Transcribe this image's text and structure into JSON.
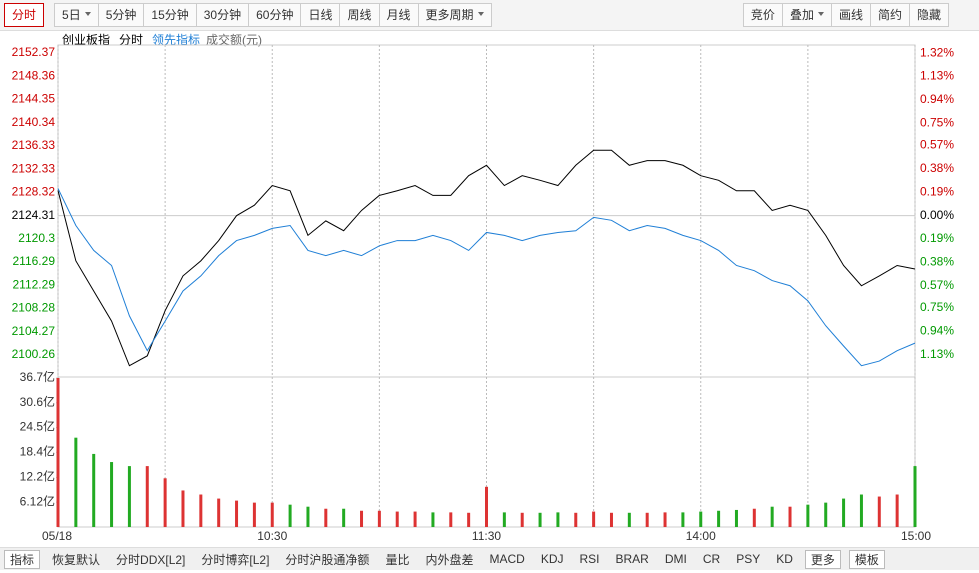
{
  "toolbar": {
    "left": [
      "分时",
      "5日",
      "5分钟",
      "15分钟",
      "30分钟",
      "60分钟",
      "日线",
      "周线",
      "月线",
      "更多周期"
    ],
    "right": [
      "竞价",
      "叠加",
      "画线",
      "简约",
      "隐藏"
    ]
  },
  "legend": {
    "index": "创业板指",
    "mode": "分时",
    "lead": "领先指标",
    "volume": "成交额(元)"
  },
  "bottom_tabs": [
    "指标",
    "恢复默认",
    "分时DDX[L2]",
    "分时博弈[L2]",
    "分时沪股通净额",
    "量比",
    "内外盘差",
    "MACD",
    "KDJ",
    "RSI",
    "BRAR",
    "DMI",
    "CR",
    "PSY",
    "KD",
    "更多",
    "模板"
  ],
  "chart_data": [
    {
      "type": "line",
      "x": [
        0,
        5,
        10,
        15,
        20,
        25,
        30,
        35,
        40,
        45,
        50,
        55,
        60,
        65,
        70,
        75,
        80,
        85,
        90,
        95,
        100,
        105,
        110,
        115,
        120,
        125,
        130,
        135,
        140,
        145,
        150,
        155,
        160,
        165,
        170,
        175,
        180,
        185,
        190,
        195,
        200,
        205,
        210,
        215,
        220,
        225,
        230,
        235,
        240
      ],
      "xlim": [
        0,
        240
      ],
      "xticks": [
        {
          "value": 0,
          "label": "05/18"
        },
        {
          "value": 60,
          "label": "10:30"
        },
        {
          "value": 120,
          "label": "11:30"
        },
        {
          "value": 180,
          "label": "14:00"
        },
        {
          "value": 240,
          "label": "15:00"
        }
      ],
      "ylim": [
        2096.45,
        2153.76
      ],
      "yticks": [
        2152.37,
        2148.36,
        2144.35,
        2140.34,
        2136.33,
        2132.33,
        2128.32,
        2124.31,
        2120.3,
        2116.29,
        2112.29,
        2108.28,
        2104.27,
        2100.26
      ],
      "y2lim": [
        -1.311,
        1.386
      ],
      "y2ticks": [
        {
          "value": 1.32,
          "label": "1.32%"
        },
        {
          "value": 1.13,
          "label": "1.13%"
        },
        {
          "value": 0.94,
          "label": "0.94%"
        },
        {
          "value": 0.75,
          "label": "0.75%"
        },
        {
          "value": 0.57,
          "label": "0.57%"
        },
        {
          "value": 0.38,
          "label": "0.38%"
        },
        {
          "value": 0.19,
          "label": "0.19%"
        },
        {
          "value": 0,
          "label": "0.00%"
        },
        {
          "value": -0.19,
          "label": "0.19%"
        },
        {
          "value": -0.38,
          "label": "0.38%"
        },
        {
          "value": -0.57,
          "label": "0.57%"
        },
        {
          "value": -0.75,
          "label": "0.75%"
        },
        {
          "value": -0.94,
          "label": "0.94%"
        },
        {
          "value": -1.13,
          "label": "1.13%"
        }
      ],
      "series": [
        {
          "name": "创业板指",
          "color": "#000000",
          "values": [
            2128.65,
            2116.5,
            2111.3,
            2106.1,
            2098.4,
            2100.1,
            2107.9,
            2113.9,
            2116.5,
            2120.0,
            2124.3,
            2126.1,
            2129.5,
            2128.6,
            2120.9,
            2123.4,
            2121.7,
            2125.2,
            2127.8,
            2128.6,
            2129.5,
            2127.8,
            2127.8,
            2131.2,
            2133.0,
            2129.5,
            2131.2,
            2130.4,
            2129.5,
            2133.0,
            2135.6,
            2135.6,
            2133.0,
            2133.8,
            2133.8,
            2133.0,
            2131.2,
            2130.4,
            2128.6,
            2128.6,
            2125.2,
            2126.1,
            2125.2,
            2120.9,
            2115.7,
            2112.2,
            2113.9,
            2115.7,
            2115.1
          ]
        },
        {
          "name": "领先指标",
          "color": "#1f7fd6",
          "values": [
            2129.0,
            2122.6,
            2118.3,
            2115.7,
            2107.0,
            2101.0,
            2106.1,
            2111.3,
            2113.9,
            2117.4,
            2120.0,
            2120.9,
            2122.1,
            2122.6,
            2118.3,
            2117.4,
            2118.3,
            2117.4,
            2119.1,
            2120.0,
            2120.0,
            2120.9,
            2120.0,
            2118.3,
            2121.4,
            2120.9,
            2120.0,
            2120.9,
            2121.4,
            2121.7,
            2124.0,
            2123.5,
            2121.7,
            2122.6,
            2122.1,
            2120.9,
            2120.0,
            2118.3,
            2115.7,
            2114.8,
            2113.1,
            2112.2,
            2109.6,
            2105.3,
            2101.8,
            2098.4,
            2099.2,
            2101.0,
            2102.3
          ]
        }
      ]
    },
    {
      "type": "bar",
      "x": [
        0,
        5,
        10,
        15,
        20,
        25,
        30,
        35,
        40,
        45,
        50,
        55,
        60,
        65,
        70,
        75,
        80,
        85,
        90,
        95,
        100,
        105,
        110,
        115,
        120,
        125,
        130,
        135,
        140,
        145,
        150,
        155,
        160,
        165,
        170,
        175,
        180,
        185,
        190,
        195,
        200,
        205,
        210,
        215,
        220,
        225,
        230,
        235,
        240
      ],
      "xlim": [
        0,
        240
      ],
      "ylim": [
        0,
        36.7
      ],
      "yticks": [
        {
          "value": 36.7,
          "label": "36.7亿"
        },
        {
          "value": 30.6,
          "label": "30.6亿"
        },
        {
          "value": 24.5,
          "label": "24.5亿"
        },
        {
          "value": 18.4,
          "label": "18.4亿"
        },
        {
          "value": 12.2,
          "label": "12.2亿"
        },
        {
          "value": 6.12,
          "label": "6.12亿"
        }
      ],
      "values": [
        36.7,
        22,
        18,
        16,
        15,
        15,
        12,
        9,
        8,
        7,
        6.5,
        6,
        6,
        5.5,
        5,
        4.5,
        4.5,
        4,
        4,
        3.8,
        3.8,
        3.6,
        3.6,
        3.5,
        9.9,
        3.6,
        3.5,
        3.5,
        3.6,
        3.5,
        3.8,
        3.5,
        3.5,
        3.5,
        3.6,
        3.6,
        3.8,
        4,
        4.2,
        4.5,
        5,
        5,
        5.5,
        6,
        7,
        8,
        7.5,
        8,
        15
      ]
    }
  ]
}
